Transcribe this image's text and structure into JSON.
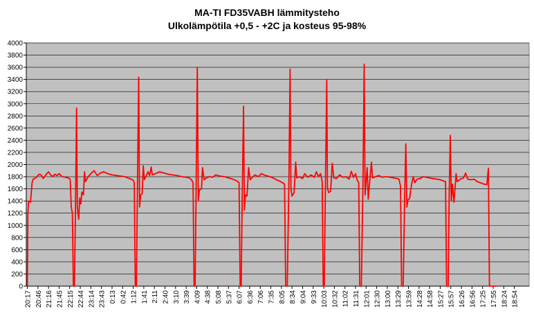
{
  "chart_data": {
    "type": "line",
    "title": "MA-TI FD35VABH lämmitysteho",
    "subtitle": "Ulkolämpötila  +0,5 - +2C ja kosteus 95-98%",
    "xlabel": "",
    "ylabel": "",
    "ylim": [
      0,
      4000
    ],
    "yticks": [
      0,
      200,
      400,
      600,
      800,
      1000,
      1200,
      1400,
      1600,
      1800,
      2000,
      2200,
      2400,
      2600,
      2800,
      3000,
      3200,
      3400,
      3600,
      3800,
      4000
    ],
    "grid": true,
    "legend": "none",
    "background_color": "#c0c0c0",
    "line_color": "#ff0000",
    "x_tick_labels": [
      "20:17",
      "20:46",
      "21:16",
      "21:45",
      "22:15",
      "22:44",
      "23:14",
      "23:43",
      "0:13",
      "0:42",
      "1:12",
      "1:41",
      "2:11",
      "2:40",
      "3:10",
      "3:39",
      "4:09",
      "4:38",
      "5:08",
      "5:37",
      "6:07",
      "6:36",
      "7:06",
      "7:35",
      "8:05",
      "8:34",
      "9:04",
      "9:33",
      "10:03",
      "10:32",
      "11:02",
      "11:31",
      "12:01",
      "12:30",
      "13:00",
      "13:29",
      "13:59",
      "14:28",
      "14:58",
      "15:27",
      "15:57",
      "16:26",
      "16:56",
      "17:25",
      "17:55",
      "18:24",
      "18:54"
    ],
    "series": [
      {
        "values": [
          [
            0,
            0
          ],
          [
            0.05,
            1200
          ],
          [
            0.12,
            1400
          ],
          [
            0.3,
            1380
          ],
          [
            0.45,
            1700
          ],
          [
            0.55,
            1760
          ],
          [
            0.8,
            1780
          ],
          [
            1.1,
            1840
          ],
          [
            1.3,
            1830
          ],
          [
            1.5,
            1770
          ],
          [
            1.75,
            1830
          ],
          [
            2,
            1880
          ],
          [
            2.2,
            1830
          ],
          [
            2.4,
            1800
          ],
          [
            2.6,
            1840
          ],
          [
            2.8,
            1820
          ],
          [
            3,
            1850
          ],
          [
            3.3,
            1800
          ],
          [
            3.6,
            1790
          ],
          [
            3.85,
            1780
          ],
          [
            4.05,
            1760
          ],
          [
            4.15,
            1300
          ],
          [
            4.25,
            1200
          ],
          [
            4.35,
            0
          ],
          [
            4.45,
            0
          ],
          [
            4.55,
            1350
          ],
          [
            4.65,
            2930
          ],
          [
            4.72,
            1300
          ],
          [
            4.85,
            1100
          ],
          [
            4.95,
            1450
          ],
          [
            5.05,
            1350
          ],
          [
            5.15,
            1550
          ],
          [
            5.3,
            1500
          ],
          [
            5.4,
            1880
          ],
          [
            5.5,
            1720
          ],
          [
            5.75,
            1800
          ],
          [
            6,
            1850
          ],
          [
            6.3,
            1900
          ],
          [
            6.6,
            1820
          ],
          [
            6.9,
            1860
          ],
          [
            7.2,
            1880
          ],
          [
            7.6,
            1850
          ],
          [
            8,
            1830
          ],
          [
            8.4,
            1820
          ],
          [
            8.8,
            1810
          ],
          [
            9.2,
            1800
          ],
          [
            9.5,
            1780
          ],
          [
            9.8,
            1760
          ],
          [
            10.0,
            1740
          ],
          [
            10.1,
            1700
          ],
          [
            10.2,
            0
          ],
          [
            10.3,
            0
          ],
          [
            10.4,
            1600
          ],
          [
            10.52,
            3440
          ],
          [
            10.6,
            1300
          ],
          [
            10.7,
            1500
          ],
          [
            10.85,
            1520
          ],
          [
            10.95,
            1980
          ],
          [
            11.05,
            1750
          ],
          [
            11.2,
            1800
          ],
          [
            11.4,
            1880
          ],
          [
            11.55,
            1820
          ],
          [
            11.7,
            1960
          ],
          [
            11.8,
            1830
          ],
          [
            12.1,
            1850
          ],
          [
            12.5,
            1880
          ],
          [
            12.9,
            1860
          ],
          [
            13.3,
            1840
          ],
          [
            13.7,
            1830
          ],
          [
            14.1,
            1820
          ],
          [
            14.6,
            1800
          ],
          [
            15.0,
            1790
          ],
          [
            15.3,
            1780
          ],
          [
            15.5,
            1750
          ],
          [
            15.65,
            1700
          ],
          [
            15.75,
            0
          ],
          [
            15.85,
            0
          ],
          [
            15.95,
            1650
          ],
          [
            16.05,
            3600
          ],
          [
            16.15,
            1400
          ],
          [
            16.25,
            1580
          ],
          [
            16.45,
            1600
          ],
          [
            16.55,
            1950
          ],
          [
            16.7,
            1750
          ],
          [
            16.9,
            1780
          ],
          [
            17.2,
            1800
          ],
          [
            17.5,
            1790
          ],
          [
            17.8,
            1830
          ],
          [
            18.2,
            1810
          ],
          [
            18.6,
            1800
          ],
          [
            19,
            1780
          ],
          [
            19.4,
            1760
          ],
          [
            19.8,
            1730
          ],
          [
            20.0,
            1700
          ],
          [
            20.1,
            0
          ],
          [
            20.2,
            0
          ],
          [
            20.3,
            1500
          ],
          [
            20.42,
            2960
          ],
          [
            20.5,
            1250
          ],
          [
            20.6,
            1500
          ],
          [
            20.75,
            1480
          ],
          [
            20.9,
            1950
          ],
          [
            21.05,
            1750
          ],
          [
            21.2,
            1780
          ],
          [
            21.5,
            1830
          ],
          [
            21.8,
            1800
          ],
          [
            22.1,
            1850
          ],
          [
            22.5,
            1820
          ],
          [
            22.9,
            1800
          ],
          [
            23.2,
            1780
          ],
          [
            23.5,
            1750
          ],
          [
            23.8,
            1730
          ],
          [
            24.1,
            1700
          ],
          [
            24.3,
            1680
          ],
          [
            24.4,
            0
          ],
          [
            24.55,
            0
          ],
          [
            24.7,
            1650
          ],
          [
            24.82,
            3570
          ],
          [
            24.9,
            1600
          ],
          [
            25,
            1480
          ],
          [
            25.2,
            1540
          ],
          [
            25.35,
            2040
          ],
          [
            25.45,
            1780
          ],
          [
            25.7,
            1800
          ],
          [
            26,
            1770
          ],
          [
            26.2,
            1850
          ],
          [
            26.5,
            1790
          ],
          [
            26.8,
            1830
          ],
          [
            27.1,
            1790
          ],
          [
            27.3,
            1880
          ],
          [
            27.5,
            1800
          ],
          [
            27.7,
            1850
          ],
          [
            27.85,
            1720
          ],
          [
            27.95,
            0
          ],
          [
            28.05,
            0
          ],
          [
            28.15,
            1600
          ],
          [
            28.28,
            3400
          ],
          [
            28.35,
            1620
          ],
          [
            28.45,
            1540
          ],
          [
            28.65,
            1560
          ],
          [
            28.8,
            2020
          ],
          [
            28.95,
            1780
          ],
          [
            29.2,
            1770
          ],
          [
            29.5,
            1830
          ],
          [
            29.8,
            1790
          ],
          [
            30.1,
            1800
          ],
          [
            30.4,
            1760
          ],
          [
            30.6,
            1890
          ],
          [
            30.8,
            1790
          ],
          [
            31,
            1850
          ],
          [
            31.15,
            1750
          ],
          [
            31.3,
            1700
          ],
          [
            31.4,
            0
          ],
          [
            31.55,
            0
          ],
          [
            31.7,
            1650
          ],
          [
            31.82,
            3650
          ],
          [
            31.9,
            1500
          ],
          [
            32,
            1720
          ],
          [
            32.1,
            1950
          ],
          [
            32.2,
            1430
          ],
          [
            32.35,
            1750
          ],
          [
            32.5,
            2040
          ],
          [
            32.6,
            1780
          ],
          [
            32.9,
            1800
          ],
          [
            33.2,
            1820
          ],
          [
            33.5,
            1790
          ],
          [
            33.9,
            1800
          ],
          [
            34.3,
            1790
          ],
          [
            34.6,
            1780
          ],
          [
            34.9,
            1770
          ],
          [
            35.1,
            1760
          ],
          [
            35.25,
            1650
          ],
          [
            35.35,
            0
          ],
          [
            35.5,
            0
          ],
          [
            35.65,
            1550
          ],
          [
            35.75,
            2340
          ],
          [
            35.85,
            1300
          ],
          [
            35.95,
            1420
          ],
          [
            36.1,
            1440
          ],
          [
            36.3,
            1680
          ],
          [
            36.45,
            1800
          ],
          [
            36.6,
            1700
          ],
          [
            36.8,
            1760
          ],
          [
            37.1,
            1770
          ],
          [
            37.4,
            1800
          ],
          [
            37.7,
            1790
          ],
          [
            38,
            1780
          ],
          [
            38.3,
            1770
          ],
          [
            38.7,
            1760
          ],
          [
            39.0,
            1750
          ],
          [
            39.3,
            1730
          ],
          [
            39.5,
            1720
          ],
          [
            39.6,
            0
          ],
          [
            39.75,
            0
          ],
          [
            39.85,
            1500
          ],
          [
            39.95,
            2480
          ],
          [
            40.05,
            1400
          ],
          [
            40.15,
            1680
          ],
          [
            40.3,
            1380
          ],
          [
            40.5,
            1850
          ],
          [
            40.6,
            1720
          ],
          [
            40.9,
            1760
          ],
          [
            41.2,
            1780
          ],
          [
            41.4,
            1860
          ],
          [
            41.6,
            1760
          ],
          [
            41.9,
            1750
          ],
          [
            42.2,
            1760
          ],
          [
            42.5,
            1720
          ],
          [
            42.8,
            1700
          ],
          [
            43.1,
            1680
          ],
          [
            43.4,
            1670
          ],
          [
            43.55,
            1940
          ],
          [
            43.65,
            0
          ],
          [
            44.3,
            0
          ]
        ]
      }
    ]
  }
}
